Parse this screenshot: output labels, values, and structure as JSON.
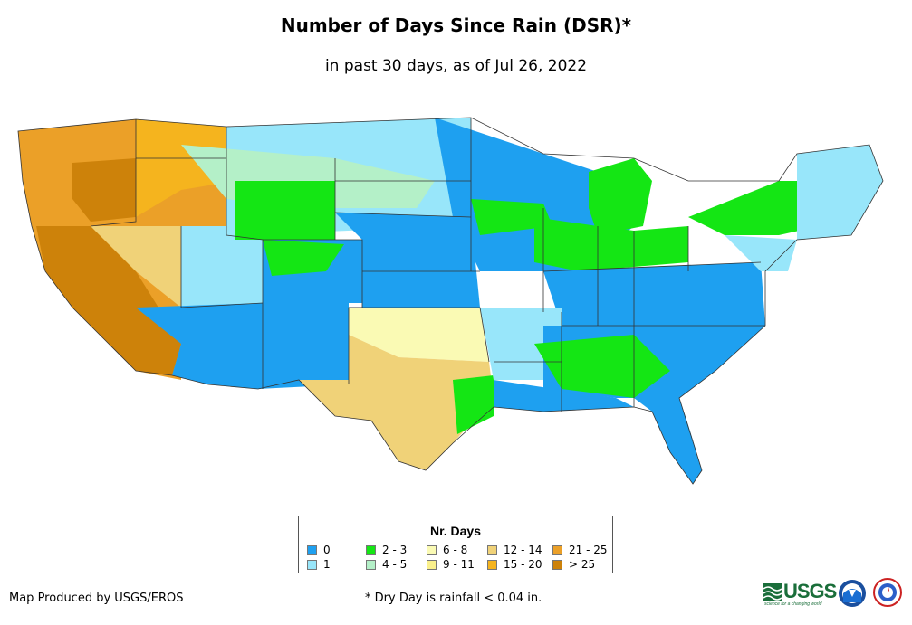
{
  "title": "Number of Days Since Rain (DSR)*",
  "subtitle": "in past 30 days, as of Jul 26, 2022",
  "legend": {
    "title": "Nr. Days",
    "items": [
      {
        "label": "0",
        "color": "#1ea0f0"
      },
      {
        "label": "1",
        "color": "#98e6fa"
      },
      {
        "label": "2 - 3",
        "color": "#14e614"
      },
      {
        "label": "4 - 5",
        "color": "#b4f0c8"
      },
      {
        "label": "6 - 8",
        "color": "#fafab4"
      },
      {
        "label": "9 - 11",
        "color": "#faf08c"
      },
      {
        "label": "12 - 14",
        "color": "#f0d278"
      },
      {
        "label": "15 - 20",
        "color": "#f5b41e"
      },
      {
        "label": "21 - 25",
        "color": "#eba028"
      },
      {
        "label": "> 25",
        "color": "#cd820a"
      }
    ]
  },
  "credit": "Map Produced by USGS/EROS",
  "footnote": "* Dry Day is rainfall < 0.04 in.",
  "logos": {
    "usgs_text": "USGS",
    "usgs_tagline": "science for a changing world",
    "usgs_color": "#1a6e3a",
    "noaa": "noaa-seal",
    "nws": "national-weather-service-seal"
  }
}
